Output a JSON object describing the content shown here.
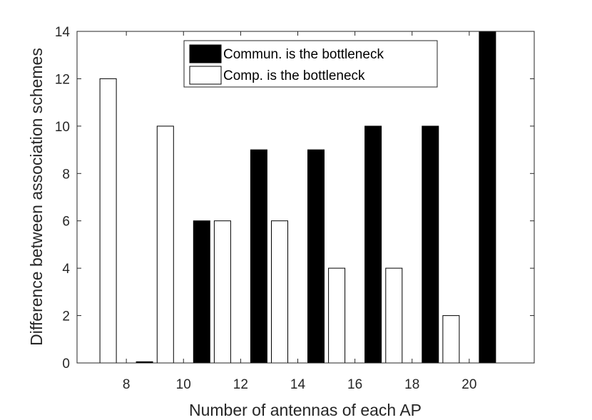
{
  "chart_data": {
    "type": "bar",
    "xlabel": "Number of antennas  of each AP",
    "ylabel": "Difference between association schemes",
    "categories": [
      "8",
      "10",
      "12",
      "14",
      "16",
      "18",
      "20"
    ],
    "series": [
      {
        "name": "Comp. is the bottleneck",
        "color": "#ffffff",
        "values": [
          12,
          10,
          6,
          6,
          4,
          4,
          2
        ]
      },
      {
        "name": "Commun. is the bottleneck",
        "color": "#000000",
        "values": [
          0.05,
          6,
          9,
          9,
          10,
          10,
          14
        ]
      }
    ],
    "ylim": [
      0,
      14
    ],
    "yticks": [
      0,
      2,
      4,
      6,
      8,
      10,
      12,
      14
    ],
    "grid": false,
    "legend": {
      "position": "top-center",
      "order": [
        "Commun. is the bottleneck",
        "Comp. is the bottleneck"
      ]
    }
  }
}
